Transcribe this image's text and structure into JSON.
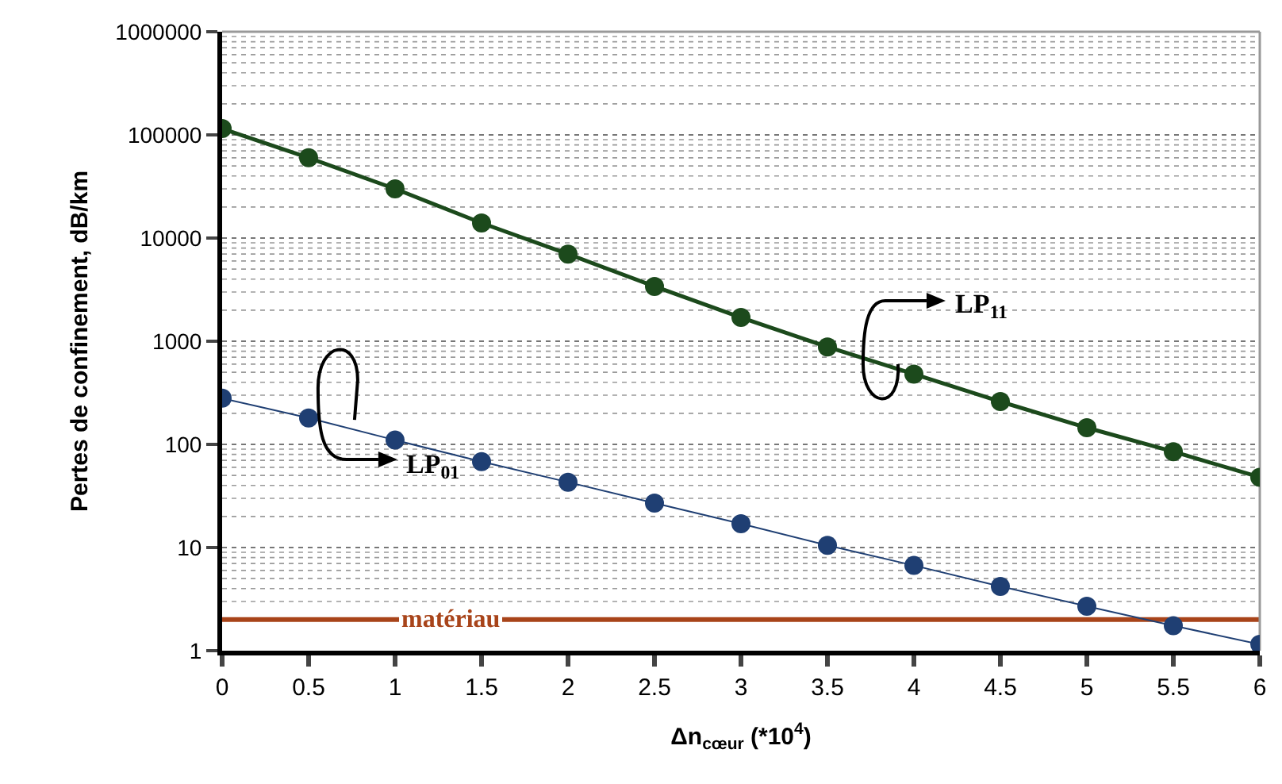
{
  "chart_data": {
    "type": "line",
    "xlabel": "Δn$_{cœur}$ (*10$^{4}$)",
    "ylabel": "Pertes de confinement, dB/km",
    "x": [
      0,
      0.5,
      1,
      1.5,
      2,
      2.5,
      3,
      3.5,
      4,
      4.5,
      5,
      5.5,
      6
    ],
    "series": [
      {
        "name": "LP$_{11}$",
        "color": "#1c4a1c",
        "values": [
          115000,
          60000,
          30000,
          14000,
          7000,
          3400,
          1700,
          880,
          480,
          260,
          145,
          85,
          48
        ]
      },
      {
        "name": "LP$_{01}$",
        "color": "#1f3f73",
        "values": [
          280,
          180,
          110,
          68,
          43,
          27,
          17,
          10.5,
          6.7,
          4.2,
          2.7,
          1.75,
          1.15
        ]
      }
    ],
    "log": "y",
    "ylim": [
      1,
      1000000
    ],
    "yticks": [
      1,
      10,
      100,
      1000,
      10000,
      100000,
      1000000
    ],
    "xlim": [
      0,
      6
    ],
    "xticks": [
      0,
      0.5,
      1,
      1.5,
      2,
      2.5,
      3,
      3.5,
      4,
      4.5,
      5,
      5.5,
      6
    ],
    "grid": "y",
    "marker": "circle",
    "line_style": "solid",
    "legend": false,
    "ref_lines": [
      {
        "axis": "y",
        "value": 2,
        "label": "matériau",
        "color": "#a8441a"
      }
    ]
  }
}
